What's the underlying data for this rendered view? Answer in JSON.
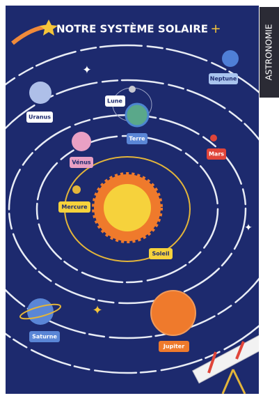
{
  "title": "NOTRE SYSTÈME SOLAIRE",
  "side_label": "ASTRONOMIE",
  "planets": [
    "Neptune",
    "Uranus",
    "Lune",
    "Terre",
    "Mars",
    "Vénus",
    "Mercure",
    "Soleil",
    "Saturne",
    "Jupiter"
  ]
}
